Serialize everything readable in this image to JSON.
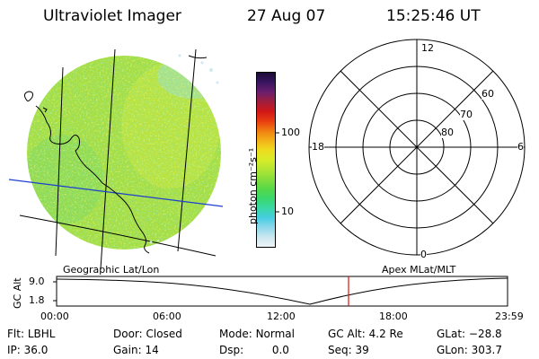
{
  "header": {
    "title": "Ultraviolet Imager",
    "date": "27 Aug 07",
    "time": "15:25:46 UT"
  },
  "colorbar": {
    "unit_label": "photon cm⁻²s⁻¹",
    "ticks": [
      "100",
      "10"
    ],
    "colors": [
      "#1a0b36",
      "#3a1560",
      "#6a1e6e",
      "#a01e3c",
      "#d11818",
      "#e83c10",
      "#f07e12",
      "#f3b118",
      "#efdc20",
      "#d8ec28",
      "#b2e534",
      "#86dd3c",
      "#56d848",
      "#3ad86c",
      "#3ad8a6",
      "#46cde0",
      "#8ed8ec",
      "#cbe7f0",
      "#eef4f6"
    ]
  },
  "map": {
    "caption": "Geographic Lat/Lon",
    "base_color": "#9edc3e",
    "grid_color": "#000000",
    "terminator_color": "#1f3fd0"
  },
  "polar": {
    "caption": "Apex MLat/MLT",
    "mlt_labels": {
      "top": "12",
      "right": "6",
      "bottom": "0",
      "left": "18"
    },
    "lat_labels": [
      "60",
      "70",
      "80"
    ]
  },
  "altitude_plot": {
    "ylabel": "GC Alt",
    "ymax": "9.0",
    "ymin": "1.8",
    "xticks": [
      "00:00",
      "06:00",
      "12:00",
      "18:00",
      "23:59"
    ],
    "marker_color": "#e01010",
    "marker_time": "15:25:46"
  },
  "status": {
    "filter": {
      "label": "Flt:",
      "value": "LBHL"
    },
    "ip": {
      "label": "IP:",
      "value": "36.0"
    },
    "door": {
      "label": "Door:",
      "value": "Closed"
    },
    "gain": {
      "label": "Gain:",
      "value": "14"
    },
    "mode": {
      "label": "Mode:",
      "value": "Normal"
    },
    "dsp": {
      "label": "Dsp:",
      "value": "0.0"
    },
    "gc_alt": {
      "label": "GC Alt:",
      "value": "4.2 Re"
    },
    "seq": {
      "label": "Seq:",
      "value": "39"
    },
    "glat": {
      "label": "GLat:",
      "value": "−28.8"
    },
    "glon": {
      "label": "GLon:",
      "value": "303.7"
    }
  }
}
